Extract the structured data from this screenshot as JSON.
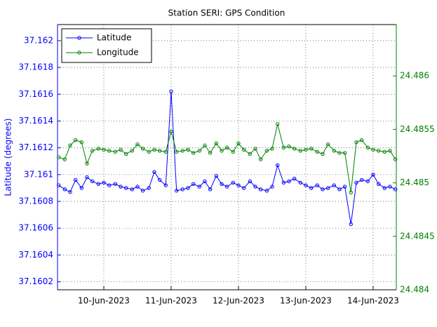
{
  "chart_data": {
    "type": "line",
    "title": "Station SERI: GPS Condition",
    "ylabel": "Latitude (degrees)",
    "x": [
      9.33,
      9.42,
      9.5,
      9.58,
      9.67,
      9.75,
      9.83,
      9.92,
      10,
      10.08,
      10.17,
      10.25,
      10.33,
      10.42,
      10.5,
      10.58,
      10.67,
      10.75,
      10.83,
      10.92,
      11,
      11.08,
      11.17,
      11.25,
      11.33,
      11.42,
      11.5,
      11.58,
      11.67,
      11.75,
      11.83,
      11.92,
      12,
      12.08,
      12.17,
      12.25,
      12.33,
      12.42,
      12.5,
      12.58,
      12.67,
      12.75,
      12.83,
      12.92,
      13,
      13.08,
      13.17,
      13.25,
      13.33,
      13.42,
      13.5,
      13.58,
      13.67,
      13.75,
      13.83,
      13.92,
      14,
      14.08,
      14.17,
      14.25,
      14.33
    ],
    "series": [
      {
        "name": "Latitude",
        "color": "#0000ff",
        "values": [
          37.16092,
          37.16089,
          37.16087,
          37.16096,
          37.1609,
          37.16098,
          37.16095,
          37.16093,
          37.16094,
          37.16092,
          37.16093,
          37.16091,
          37.1609,
          37.16089,
          37.16091,
          37.16088,
          37.1609,
          37.16102,
          37.16096,
          37.16092,
          37.16162,
          37.16088,
          37.16089,
          37.1609,
          37.16093,
          37.16091,
          37.16095,
          37.16089,
          37.16099,
          37.16093,
          37.16091,
          37.16094,
          37.16092,
          37.1609,
          37.16095,
          37.16091,
          37.16089,
          37.16088,
          37.16091,
          37.16107,
          37.16094,
          37.16095,
          37.16097,
          37.16094,
          37.16092,
          37.1609,
          37.16092,
          37.16089,
          37.1609,
          37.16092,
          37.16089,
          37.16091,
          37.16063,
          37.16094,
          37.16096,
          37.16095,
          37.161,
          37.16093,
          37.1609,
          37.16091,
          37.16089
        ]
      },
      {
        "name": "Longitude",
        "color": "#008000",
        "axis": "y2",
        "values": [
          24.48524,
          24.48522,
          24.48535,
          24.4854,
          24.48538,
          24.48518,
          24.4853,
          24.48532,
          24.48531,
          24.4853,
          24.48529,
          24.48531,
          24.48527,
          24.4853,
          24.48536,
          24.48532,
          24.48529,
          24.48531,
          24.4853,
          24.48529,
          24.48548,
          24.48529,
          24.4853,
          24.48531,
          24.48528,
          24.4853,
          24.48535,
          24.48528,
          24.48537,
          24.4853,
          24.48533,
          24.48529,
          24.48537,
          24.48531,
          24.48527,
          24.48532,
          24.48522,
          24.4853,
          24.48532,
          24.48555,
          24.48533,
          24.48534,
          24.48532,
          24.4853,
          24.48531,
          24.48532,
          24.48529,
          24.48527,
          24.48536,
          24.4853,
          24.48528,
          24.48528,
          24.48491,
          24.48538,
          24.4854,
          24.48533,
          24.48531,
          24.4853,
          24.48529,
          24.4853,
          24.48522
        ]
      }
    ],
    "xlim": [
      9.3125,
      14.344
    ],
    "xticks": [
      {
        "value": 10,
        "label": "10-Jun-2023"
      },
      {
        "value": 11,
        "label": "11-Jun-2023"
      },
      {
        "value": 12,
        "label": "12-Jun-2023"
      },
      {
        "value": 13,
        "label": "13-Jun-2023"
      },
      {
        "value": 14,
        "label": "14-Jun-2023"
      }
    ],
    "ylim": [
      37.16014,
      37.16212
    ],
    "yticks": [
      37.1602,
      37.1604,
      37.1606,
      37.1608,
      37.161,
      37.1612,
      37.1614,
      37.1616,
      37.1618,
      37.162
    ],
    "y2lim": [
      24.484,
      24.48648
    ],
    "y2ticks": [
      24.484,
      24.4845,
      24.485,
      24.4855,
      24.486
    ],
    "grid": true,
    "legend": "upper left"
  }
}
